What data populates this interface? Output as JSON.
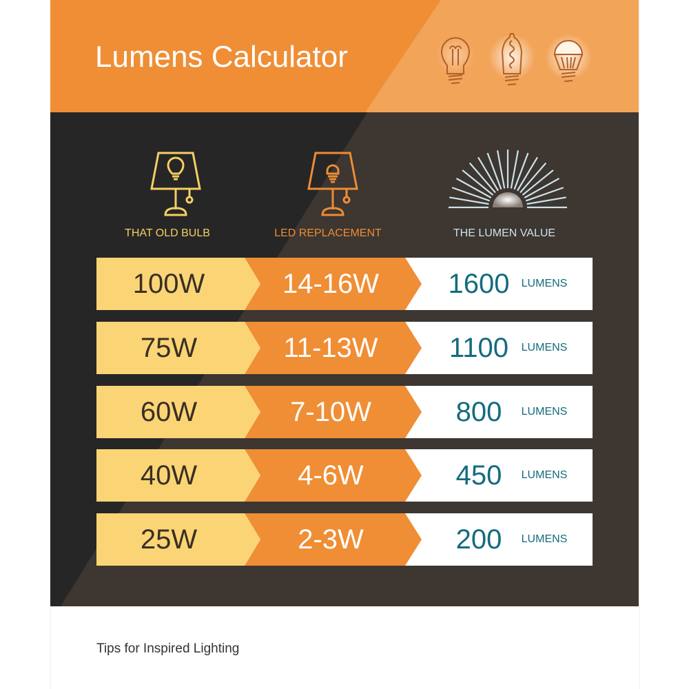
{
  "title": "Lumens Calculator",
  "header_icons": [
    "incandescent-bulb-icon",
    "edison-filament-bulb-icon",
    "led-bulb-icon"
  ],
  "columns": [
    {
      "label": "THAT OLD BULB",
      "icon": "table-lamp-old-bulb-icon",
      "color": "#f6cf63"
    },
    {
      "label": "LED REPLACEMENT",
      "icon": "table-lamp-led-icon",
      "color": "#ee8c34"
    },
    {
      "label": "THE LUMEN VALUE",
      "icon": "light-rays-icon",
      "color": "#cde3ea"
    }
  ],
  "rows": [
    {
      "old": "100W",
      "led": "14-16W",
      "lumens": "1600",
      "unit": "LUMENS"
    },
    {
      "old": "75W",
      "led": "11-13W",
      "lumens": "1100",
      "unit": "LUMENS"
    },
    {
      "old": "60W",
      "led": "7-10W",
      "lumens": "800",
      "unit": "LUMENS"
    },
    {
      "old": "40W",
      "led": "4-6W",
      "lumens": "450",
      "unit": "LUMENS"
    },
    {
      "old": "25W",
      "led": "2-3W",
      "lumens": "200",
      "unit": "LUMENS"
    }
  ],
  "footer": "Tips for Inspired Lighting",
  "colors": {
    "orange": "#ef8e35",
    "yellow": "#fbd575",
    "teal": "#136b7e",
    "dark": "#262626"
  }
}
